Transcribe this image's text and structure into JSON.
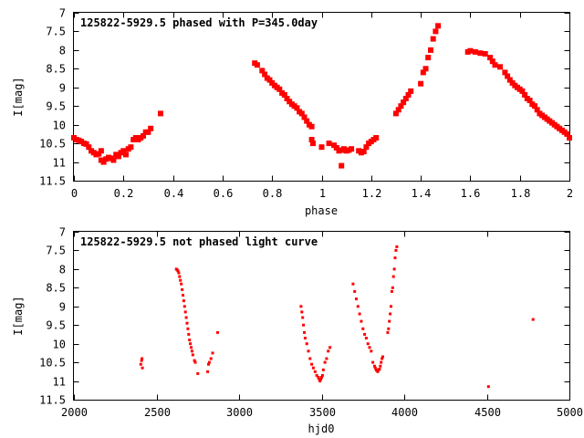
{
  "chart_data": [
    {
      "type": "scatter",
      "title": "125822-5929.5 phased with P=345.0day",
      "xlabel": "phase",
      "ylabel": "I[mag]",
      "xlim": [
        0,
        2
      ],
      "ylim": [
        11.5,
        7
      ],
      "y_inverted": true,
      "x_ticks": [
        "0",
        "0.2",
        "0.4",
        "0.6",
        "0.8",
        "1",
        "1.2",
        "1.4",
        "1.6",
        "1.8",
        "2"
      ],
      "y_ticks": [
        "7",
        "7.5",
        "8",
        "8.5",
        "9",
        "9.5",
        "10",
        "10.5",
        "11",
        "11.5"
      ],
      "marker_color": "#ff0000",
      "grid": false,
      "series": [
        {
          "name": "",
          "points": [
            [
              0.0,
              10.35
            ],
            [
              0.01,
              10.4
            ],
            [
              0.02,
              10.42
            ],
            [
              0.03,
              10.45
            ],
            [
              0.04,
              10.5
            ],
            [
              0.05,
              10.52
            ],
            [
              0.06,
              10.6
            ],
            [
              0.07,
              10.7
            ],
            [
              0.08,
              10.75
            ],
            [
              0.09,
              10.8
            ],
            [
              0.1,
              10.78
            ],
            [
              0.11,
              10.7
            ],
            [
              0.11,
              10.95
            ],
            [
              0.12,
              11.0
            ],
            [
              0.13,
              10.92
            ],
            [
              0.14,
              10.88
            ],
            [
              0.15,
              10.9
            ],
            [
              0.16,
              10.95
            ],
            [
              0.17,
              10.8
            ],
            [
              0.18,
              10.85
            ],
            [
              0.19,
              10.75
            ],
            [
              0.2,
              10.7
            ],
            [
              0.21,
              10.8
            ],
            [
              0.22,
              10.65
            ],
            [
              0.23,
              10.6
            ],
            [
              0.24,
              10.4
            ],
            [
              0.25,
              10.35
            ],
            [
              0.26,
              10.4
            ],
            [
              0.27,
              10.35
            ],
            [
              0.28,
              10.3
            ],
            [
              0.29,
              10.2
            ],
            [
              0.3,
              10.2
            ],
            [
              0.31,
              10.1
            ],
            [
              0.35,
              9.7
            ],
            [
              0.73,
              8.35
            ],
            [
              0.74,
              8.4
            ],
            [
              0.76,
              8.55
            ],
            [
              0.77,
              8.65
            ],
            [
              0.78,
              8.75
            ],
            [
              0.79,
              8.8
            ],
            [
              0.8,
              8.88
            ],
            [
              0.81,
              8.95
            ],
            [
              0.82,
              9.0
            ],
            [
              0.83,
              9.05
            ],
            [
              0.84,
              9.15
            ],
            [
              0.85,
              9.2
            ],
            [
              0.86,
              9.3
            ],
            [
              0.87,
              9.38
            ],
            [
              0.88,
              9.45
            ],
            [
              0.89,
              9.5
            ],
            [
              0.9,
              9.55
            ],
            [
              0.91,
              9.65
            ],
            [
              0.92,
              9.7
            ],
            [
              0.93,
              9.8
            ],
            [
              0.94,
              9.9
            ],
            [
              0.95,
              10.0
            ],
            [
              0.96,
              10.05
            ],
            [
              0.96,
              10.4
            ],
            [
              0.965,
              10.5
            ],
            [
              1.0,
              10.6
            ],
            [
              1.03,
              10.5
            ],
            [
              1.05,
              10.55
            ],
            [
              1.06,
              10.62
            ],
            [
              1.07,
              10.7
            ],
            [
              1.08,
              10.68
            ],
            [
              1.08,
              11.1
            ],
            [
              1.09,
              10.65
            ],
            [
              1.1,
              10.7
            ],
            [
              1.11,
              10.68
            ],
            [
              1.12,
              10.65
            ],
            [
              1.15,
              10.7
            ],
            [
              1.16,
              10.75
            ],
            [
              1.17,
              10.72
            ],
            [
              1.18,
              10.6
            ],
            [
              1.19,
              10.5
            ],
            [
              1.2,
              10.45
            ],
            [
              1.21,
              10.4
            ],
            [
              1.22,
              10.35
            ],
            [
              1.3,
              9.7
            ],
            [
              1.31,
              9.6
            ],
            [
              1.32,
              9.5
            ],
            [
              1.33,
              9.4
            ],
            [
              1.34,
              9.3
            ],
            [
              1.35,
              9.2
            ],
            [
              1.36,
              9.1
            ],
            [
              1.4,
              8.9
            ],
            [
              1.41,
              8.6
            ],
            [
              1.42,
              8.5
            ],
            [
              1.43,
              8.2
            ],
            [
              1.44,
              8.0
            ],
            [
              1.45,
              7.7
            ],
            [
              1.46,
              7.5
            ],
            [
              1.47,
              7.35
            ],
            [
              1.59,
              8.05
            ],
            [
              1.6,
              8.02
            ],
            [
              1.62,
              8.05
            ],
            [
              1.64,
              8.08
            ],
            [
              1.66,
              8.1
            ],
            [
              1.68,
              8.2
            ],
            [
              1.69,
              8.3
            ],
            [
              1.7,
              8.4
            ],
            [
              1.72,
              8.45
            ],
            [
              1.74,
              8.6
            ],
            [
              1.75,
              8.7
            ],
            [
              1.76,
              8.8
            ],
            [
              1.77,
              8.88
            ],
            [
              1.78,
              8.95
            ],
            [
              1.79,
              9.0
            ],
            [
              1.8,
              9.05
            ],
            [
              1.81,
              9.1
            ],
            [
              1.82,
              9.2
            ],
            [
              1.83,
              9.3
            ],
            [
              1.84,
              9.35
            ],
            [
              1.85,
              9.45
            ],
            [
              1.86,
              9.5
            ],
            [
              1.87,
              9.6
            ],
            [
              1.88,
              9.7
            ],
            [
              1.89,
              9.75
            ],
            [
              1.9,
              9.8
            ],
            [
              1.91,
              9.85
            ],
            [
              1.92,
              9.9
            ],
            [
              1.93,
              9.95
            ],
            [
              1.94,
              10.0
            ],
            [
              1.95,
              10.05
            ],
            [
              1.96,
              10.1
            ],
            [
              1.97,
              10.15
            ],
            [
              1.98,
              10.2
            ],
            [
              1.99,
              10.25
            ],
            [
              2.0,
              10.35
            ]
          ]
        }
      ]
    },
    {
      "type": "scatter",
      "title": "125822-5929.5 not phased light curve",
      "xlabel": "hjd0",
      "ylabel": "I[mag]",
      "xlim": [
        2000,
        5000
      ],
      "ylim": [
        11.5,
        7
      ],
      "y_inverted": true,
      "x_ticks": [
        "2000",
        "2500",
        "3000",
        "3500",
        "4000",
        "4500",
        "5000"
      ],
      "y_ticks": [
        "7",
        "7.5",
        "8",
        "8.5",
        "9",
        "9.5",
        "10",
        "10.5",
        "11",
        "11.5"
      ],
      "marker_color": "#ff0000",
      "grid": false,
      "series": [
        {
          "name": "",
          "points": [
            [
              2405,
              10.55
            ],
            [
              2410,
              10.45
            ],
            [
              2412,
              10.4
            ],
            [
              2415,
              10.65
            ],
            [
              2620,
              8.0
            ],
            [
              2625,
              8.02
            ],
            [
              2630,
              8.05
            ],
            [
              2635,
              8.1
            ],
            [
              2640,
              8.2
            ],
            [
              2645,
              8.3
            ],
            [
              2650,
              8.4
            ],
            [
              2655,
              8.55
            ],
            [
              2660,
              8.7
            ],
            [
              2665,
              8.85
            ],
            [
              2670,
              9.0
            ],
            [
              2675,
              9.15
            ],
            [
              2680,
              9.3
            ],
            [
              2685,
              9.45
            ],
            [
              2690,
              9.6
            ],
            [
              2695,
              9.75
            ],
            [
              2700,
              9.9
            ],
            [
              2705,
              10.0
            ],
            [
              2710,
              10.1
            ],
            [
              2715,
              10.2
            ],
            [
              2720,
              10.3
            ],
            [
              2730,
              10.45
            ],
            [
              2735,
              10.5
            ],
            [
              2750,
              10.8
            ],
            [
              2810,
              10.75
            ],
            [
              2815,
              10.55
            ],
            [
              2820,
              10.5
            ],
            [
              2830,
              10.4
            ],
            [
              2840,
              10.25
            ],
            [
              2870,
              9.7
            ],
            [
              3375,
              9.0
            ],
            [
              3380,
              9.15
            ],
            [
              3385,
              9.3
            ],
            [
              3390,
              9.5
            ],
            [
              3395,
              9.7
            ],
            [
              3400,
              9.85
            ],
            [
              3410,
              10.0
            ],
            [
              3420,
              10.2
            ],
            [
              3430,
              10.4
            ],
            [
              3440,
              10.55
            ],
            [
              3450,
              10.65
            ],
            [
              3460,
              10.75
            ],
            [
              3470,
              10.85
            ],
            [
              3480,
              10.9
            ],
            [
              3485,
              10.95
            ],
            [
              3490,
              11.0
            ],
            [
              3495,
              10.95
            ],
            [
              3500,
              10.9
            ],
            [
              3505,
              10.85
            ],
            [
              3510,
              10.7
            ],
            [
              3520,
              10.5
            ],
            [
              3530,
              10.4
            ],
            [
              3540,
              10.2
            ],
            [
              3550,
              10.1
            ],
            [
              3690,
              8.4
            ],
            [
              3700,
              8.6
            ],
            [
              3710,
              8.8
            ],
            [
              3720,
              9.0
            ],
            [
              3730,
              9.2
            ],
            [
              3740,
              9.4
            ],
            [
              3750,
              9.6
            ],
            [
              3760,
              9.75
            ],
            [
              3770,
              9.85
            ],
            [
              3780,
              10.0
            ],
            [
              3790,
              10.1
            ],
            [
              3800,
              10.2
            ],
            [
              3810,
              10.5
            ],
            [
              3820,
              10.6
            ],
            [
              3825,
              10.65
            ],
            [
              3830,
              10.7
            ],
            [
              3835,
              10.72
            ],
            [
              3840,
              10.75
            ],
            [
              3845,
              10.7
            ],
            [
              3850,
              10.68
            ],
            [
              3855,
              10.6
            ],
            [
              3860,
              10.5
            ],
            [
              3865,
              10.4
            ],
            [
              3870,
              10.35
            ],
            [
              3900,
              9.7
            ],
            [
              3905,
              9.6
            ],
            [
              3910,
              9.4
            ],
            [
              3915,
              9.2
            ],
            [
              3920,
              9.0
            ],
            [
              3925,
              8.6
            ],
            [
              3930,
              8.5
            ],
            [
              3935,
              8.2
            ],
            [
              3940,
              8.0
            ],
            [
              3945,
              7.7
            ],
            [
              3950,
              7.5
            ],
            [
              3955,
              7.4
            ],
            [
              4510,
              11.15
            ],
            [
              4780,
              9.35
            ]
          ]
        }
      ]
    }
  ]
}
